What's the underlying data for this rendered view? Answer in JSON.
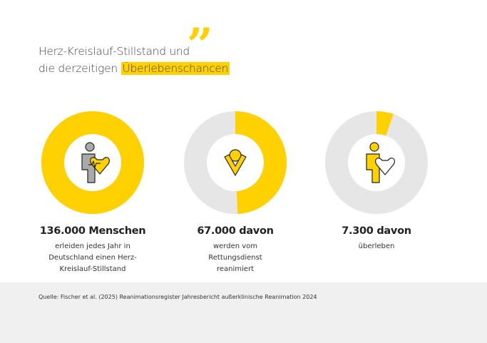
{
  "title": {
    "line1": "Herz-Kreislauf-Stillstand und",
    "line2_prefix": "die derzeitigen ",
    "line2_highlight": "Überlebenschancen"
  },
  "quote_mark": "”",
  "colors": {
    "accent": "#FFD100",
    "track": "#E6E6E6",
    "footer_bg": "#F0F0F0"
  },
  "chart_data": {
    "type": "donut",
    "total": 136000,
    "series": [
      {
        "value": 136000,
        "icon": "person-heart-ecg-icon",
        "headline": "136.000 Menschen",
        "text": "erleiden jedes Jahr in Deutschland einen Herz-Kreislauf-Stillstand"
      },
      {
        "value": 67000,
        "icon": "person-resuscitation-icon",
        "headline": "67.000 davon",
        "text": "werden vom Rettungsdienst reanimiert"
      },
      {
        "value": 7300,
        "icon": "person-holding-heart-icon",
        "headline": "7.300 davon",
        "text": "überleben"
      }
    ]
  },
  "footer": {
    "source": "Quelle: Fischer et al. (2025) Reanimationsregister Jahresbericht außerklinische Reanimation 2024"
  }
}
